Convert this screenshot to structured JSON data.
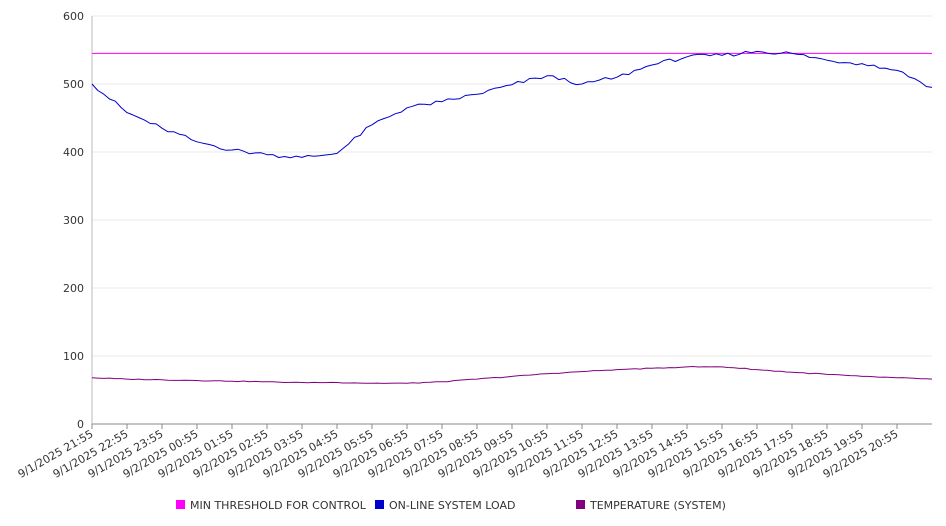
{
  "chart_data": {
    "type": "line",
    "title": "",
    "xlabel": "",
    "ylabel": "",
    "ylim": [
      0,
      600
    ],
    "yticks": [
      0,
      100,
      200,
      300,
      400,
      500,
      600
    ],
    "grid": true,
    "legend_position": "bottom",
    "x_tick_labels": [
      "9/1/2025 21:55",
      "9/1/2025 22:55",
      "9/1/2025 23:55",
      "9/2/2025 00:55",
      "9/2/2025 01:55",
      "9/2/2025 02:55",
      "9/2/2025 03:55",
      "9/2/2025 04:55",
      "9/2/2025 05:55",
      "9/2/2025 06:55",
      "9/2/2025 07:55",
      "9/2/2025 08:55",
      "9/2/2025 09:55",
      "9/2/2025 10:55",
      "9/2/2025 11:55",
      "9/2/2025 12:55",
      "9/2/2025 13:55",
      "9/2/2025 14:55",
      "9/2/2025 15:55",
      "9/2/2025 16:55",
      "9/2/2025 17:55",
      "9/2/2025 18:55",
      "9/2/2025 19:55",
      "9/2/2025 20:55"
    ],
    "x_hours": [
      0,
      1,
      2,
      3,
      4,
      5,
      6,
      7,
      8,
      9,
      10,
      11,
      12,
      13,
      14,
      15,
      16,
      17,
      18,
      19,
      20,
      21,
      22,
      23,
      24
    ],
    "series": [
      {
        "name": "MIN THRESHOLD FOR CONTROL",
        "color": "#ff00ff",
        "values": [
          545,
          545,
          545,
          545,
          545,
          545,
          545,
          545,
          545,
          545,
          545,
          545,
          545,
          545,
          545,
          545,
          545,
          545,
          545,
          545,
          545,
          545,
          545,
          545,
          545
        ]
      },
      {
        "name": "ON-LINE SYSTEM LOAD",
        "color": "#0000cc",
        "values": [
          500,
          458,
          435,
          415,
          403,
          396,
          392,
          398,
          440,
          465,
          474,
          485,
          499,
          512,
          500,
          510,
          528,
          540,
          542,
          548,
          545,
          535,
          530,
          520,
          495
        ]
      },
      {
        "name": "TEMPERATURE (SYSTEM)",
        "color": "#800080",
        "values": [
          68,
          66,
          65,
          64,
          63,
          62,
          61,
          61,
          60,
          60,
          62,
          66,
          70,
          74,
          77,
          80,
          82,
          84,
          84,
          80,
          76,
          73,
          70,
          68,
          66
        ]
      }
    ]
  }
}
